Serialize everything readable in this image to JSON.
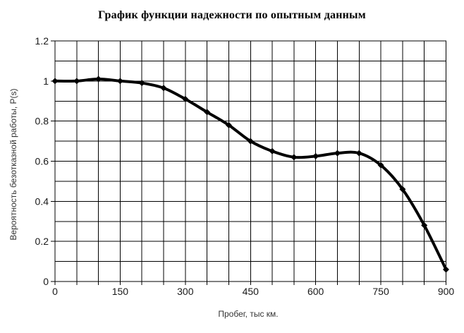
{
  "chart_data": {
    "type": "line",
    "title": "График функции надежности по опытным данным",
    "xlabel": "Пробег, тыс км.",
    "ylabel": "Вероятность безотказной работы, P(s)",
    "x": [
      0,
      50,
      100,
      150,
      200,
      250,
      300,
      350,
      400,
      450,
      500,
      550,
      600,
      650,
      700,
      750,
      800,
      850,
      900
    ],
    "y": [
      1.0,
      1.0,
      1.01,
      1.0,
      0.99,
      0.965,
      0.91,
      0.845,
      0.78,
      0.7,
      0.65,
      0.62,
      0.625,
      0.64,
      0.64,
      0.58,
      0.46,
      0.28,
      0.06
    ],
    "xlim": [
      0,
      900
    ],
    "ylim": [
      0,
      1.2
    ],
    "x_tick_step_minor": 50,
    "x_tick_step_major": 150,
    "y_tick_step_minor": 0.1,
    "y_tick_step_major": 0.2,
    "x_tick_labels": [
      "0",
      "150",
      "300",
      "450",
      "600",
      "750",
      "900"
    ],
    "y_tick_labels": [
      "0",
      "0.2",
      "0.4",
      "0.6",
      "0.8",
      "1",
      "1.2"
    ],
    "grid": "both-minor",
    "legend": "none",
    "marker": "diamond",
    "line_color": "#000000",
    "grid_color": "#000000",
    "background": "#ffffff",
    "title_color": "#000000",
    "tick_label_color": "#1a1a1a",
    "axis_title_color": "#333333"
  }
}
